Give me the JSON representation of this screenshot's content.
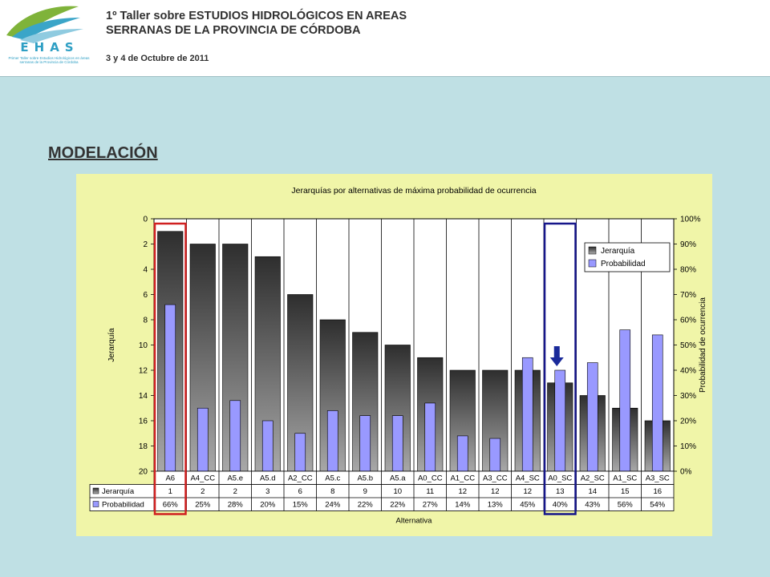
{
  "header": {
    "logo_text": "EHAS",
    "logo_sub": "Primer Taller sobre Estudios Hidrológicos en áreas serranas de la Provincia de Córdoba",
    "title": "1º Taller sobre ESTUDIOS HIDROLÓGICOS EN AREAS SERRANAS DE LA PROVINCIA DE CÓRDOBA",
    "date": "3 y 4 de Octubre de 2011"
  },
  "section_title": "MODELACIÓN",
  "colors": {
    "bar_dark": "#2e2e2e",
    "bar_light": "#a8a8a8",
    "prob": "#9999ff",
    "highlight_red": "#d02020",
    "highlight_blue": "#16168a",
    "arrow": "#1a2a9a",
    "plot_bg": "#ffffff",
    "panel_bg": "#f0f5a8"
  },
  "chart_data": {
    "type": "bar",
    "title": "Jerarquías por alternativas de máxima probabilidad de ocurrencia",
    "xlabel": "Alternativa",
    "ylabel": "Jerarquía",
    "y2label": "Probabilidad de ocurrencia",
    "categories": [
      "A6",
      "A4_CC",
      "A5.e",
      "A5.d",
      "A2_CC",
      "A5.c",
      "A5.b",
      "A5.a",
      "A0_CC",
      "A1_CC",
      "A3_CC",
      "A4_SC",
      "A0_SC",
      "A2_SC",
      "A1_SC",
      "A3_SC"
    ],
    "ylim": [
      0,
      20
    ],
    "y_reversed": true,
    "y_ticks": [
      "0",
      "2",
      "4",
      "6",
      "8",
      "10",
      "12",
      "14",
      "16",
      "18",
      "20"
    ],
    "y2lim": [
      0,
      100
    ],
    "y2_ticks": [
      "0%",
      "10%",
      "20%",
      "30%",
      "40%",
      "50%",
      "60%",
      "70%",
      "80%",
      "90%",
      "100%"
    ],
    "series": [
      {
        "name": "Jerarquía",
        "axis": "left",
        "values": [
          1,
          2,
          2,
          3,
          6,
          8,
          9,
          10,
          11,
          12,
          12,
          12,
          13,
          14,
          15,
          16
        ],
        "labels": [
          "1",
          "2",
          "2",
          "3",
          "6",
          "8",
          "9",
          "10",
          "11",
          "12",
          "12",
          "12",
          "13",
          "14",
          "15",
          "16"
        ]
      },
      {
        "name": "Probabilidad",
        "axis": "right",
        "values": [
          66,
          25,
          28,
          20,
          15,
          24,
          22,
          22,
          27,
          14,
          13,
          45,
          40,
          43,
          56,
          54
        ],
        "labels": [
          "66%",
          "25%",
          "28%",
          "20%",
          "15%",
          "24%",
          "22%",
          "22%",
          "27%",
          "14%",
          "13%",
          "45%",
          "40%",
          "43%",
          "56%",
          "54%"
        ]
      }
    ],
    "highlights": [
      {
        "category": "A6",
        "color": "red"
      },
      {
        "category": "A0_SC",
        "color": "blue",
        "arrow": true
      }
    ],
    "legend": "top-right inside plot",
    "data_table": true,
    "grid": "vertical category separators"
  }
}
